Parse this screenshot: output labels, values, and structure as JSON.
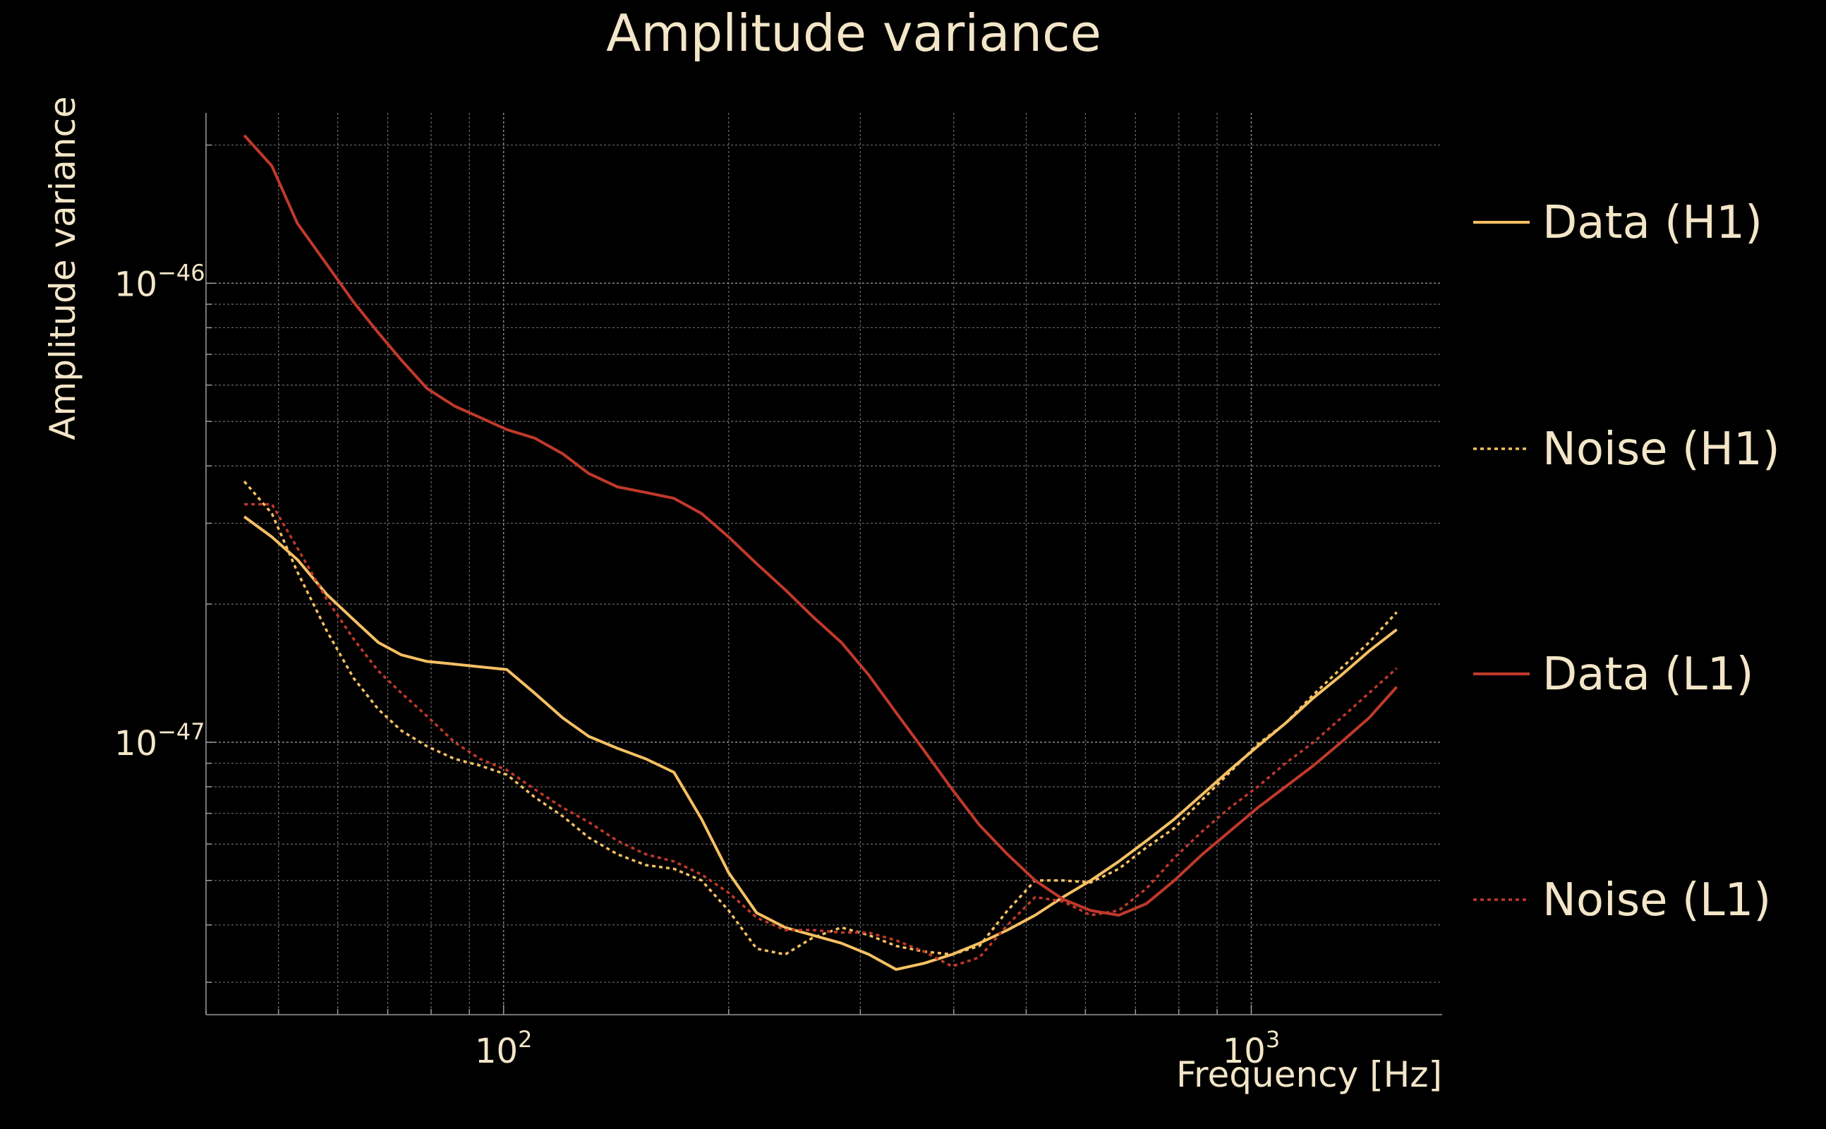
{
  "colors": {
    "background": "#000000",
    "text": "#f3e6c8",
    "h1": "#f5c063",
    "l1": "#c0392b"
  },
  "chart_data": {
    "type": "line",
    "title": "Amplitude variance",
    "xlabel": "Frequency [Hz]",
    "ylabel": "Amplitude variance",
    "x_scale": "log",
    "y_scale": "log",
    "xlim": [
      40,
      1800
    ],
    "ylim": [
      2.55e-48,
      2.35e-46
    ],
    "x_ticks": [
      {
        "value": 100,
        "label": "10",
        "exp": "2"
      },
      {
        "value": 1000,
        "label": "10",
        "exp": "3"
      }
    ],
    "y_ticks": [
      {
        "value": 1e-46,
        "label": "10",
        "exp": "−46"
      },
      {
        "value": 1e-47,
        "label": "10",
        "exp": "−47"
      }
    ],
    "grid": true,
    "legend_position": "right",
    "series": [
      {
        "name": "Data (H1)",
        "color": "#f5c063",
        "style": "solid",
        "x": [
          45,
          49,
          53,
          58,
          63,
          68,
          73,
          79,
          86,
          93,
          101,
          110,
          120,
          130,
          142,
          155,
          169,
          184,
          200,
          218,
          238,
          259,
          283,
          308,
          335,
          365,
          398,
          433,
          472,
          514,
          560,
          610,
          665,
          724,
          789,
          860,
          936,
          1020,
          1111,
          1211,
          1319,
          1437,
          1565
        ],
        "y": [
          3.1e-47,
          2.8e-47,
          2.5e-47,
          2.1e-47,
          1.85e-47,
          1.65e-47,
          1.55e-47,
          1.5e-47,
          1.48e-47,
          1.46e-47,
          1.44e-47,
          1.28e-47,
          1.13e-47,
          1.03e-47,
          9.7e-48,
          9.2e-48,
          8.6e-48,
          6.8e-48,
          5.2e-48,
          4.25e-48,
          3.95e-48,
          3.8e-48,
          3.65e-48,
          3.45e-48,
          3.2e-48,
          3.3e-48,
          3.45e-48,
          3.65e-48,
          3.9e-48,
          4.2e-48,
          4.6e-48,
          5e-48,
          5.5e-48,
          6.1e-48,
          6.8e-48,
          7.7e-48,
          8.7e-48,
          9.8e-48,
          1.1e-47,
          1.25e-47,
          1.4e-47,
          1.58e-47,
          1.76e-47
        ]
      },
      {
        "name": "Noise (H1)",
        "color": "#f5c063",
        "style": "dotted",
        "x": [
          45,
          49,
          53,
          58,
          63,
          68,
          73,
          79,
          86,
          93,
          101,
          110,
          120,
          130,
          142,
          155,
          169,
          184,
          200,
          218,
          238,
          259,
          283,
          308,
          335,
          365,
          398,
          433,
          472,
          514,
          560,
          610,
          665,
          724,
          789,
          860,
          936,
          1020,
          1111,
          1211,
          1319,
          1437,
          1565
        ],
        "y": [
          3.7e-47,
          3.15e-47,
          2.35e-47,
          1.75e-47,
          1.38e-47,
          1.18e-47,
          1.06e-47,
          9.8e-48,
          9.2e-48,
          8.9e-48,
          8.5e-48,
          7.6e-48,
          6.9e-48,
          6.2e-48,
          5.7e-48,
          5.4e-48,
          5.3e-48,
          5e-48,
          4.3e-48,
          3.55e-48,
          3.45e-48,
          3.75e-48,
          3.95e-48,
          3.8e-48,
          3.6e-48,
          3.5e-48,
          3.45e-48,
          3.6e-48,
          4.3e-48,
          5e-48,
          5e-48,
          4.95e-48,
          5.3e-48,
          5.9e-48,
          6.5e-48,
          7.5e-48,
          8.6e-48,
          9.9e-48,
          1.1e-47,
          1.27e-47,
          1.45e-47,
          1.65e-47,
          1.92e-47
        ]
      },
      {
        "name": "Data (L1)",
        "color": "#c0392b",
        "style": "solid",
        "x": [
          45,
          49,
          53,
          58,
          63,
          68,
          73,
          79,
          86,
          93,
          101,
          110,
          120,
          130,
          142,
          155,
          169,
          184,
          200,
          218,
          238,
          259,
          283,
          308,
          335,
          365,
          398,
          433,
          472,
          514,
          560,
          610,
          665,
          724,
          789,
          860,
          936,
          1020,
          1111,
          1211,
          1319,
          1437,
          1565
        ],
        "y": [
          2.1e-46,
          1.8e-46,
          1.35e-46,
          1.1e-46,
          9.1e-47,
          7.8e-47,
          6.8e-47,
          5.9e-47,
          5.4e-47,
          5.1e-47,
          4.8e-47,
          4.6e-47,
          4.25e-47,
          3.85e-47,
          3.6e-47,
          3.5e-47,
          3.4e-47,
          3.15e-47,
          2.8e-47,
          2.45e-47,
          2.15e-47,
          1.88e-47,
          1.65e-47,
          1.4e-47,
          1.16e-47,
          9.6e-48,
          7.9e-48,
          6.6e-48,
          5.7e-48,
          5e-48,
          4.55e-48,
          4.3e-48,
          4.2e-48,
          4.45e-48,
          5e-48,
          5.7e-48,
          6.4e-48,
          7.2e-48,
          8e-48,
          8.9e-48,
          1e-47,
          1.13e-47,
          1.32e-47
        ]
      },
      {
        "name": "Noise (L1)",
        "color": "#c0392b",
        "style": "dotted",
        "x": [
          45,
          49,
          53,
          58,
          63,
          68,
          73,
          79,
          86,
          93,
          101,
          110,
          120,
          130,
          142,
          155,
          169,
          184,
          200,
          218,
          238,
          259,
          283,
          308,
          335,
          365,
          398,
          433,
          472,
          514,
          560,
          610,
          665,
          724,
          789,
          860,
          936,
          1020,
          1111,
          1211,
          1319,
          1437,
          1565
        ],
        "y": [
          3.3e-47,
          3.3e-47,
          2.65e-47,
          2.05e-47,
          1.68e-47,
          1.43e-47,
          1.28e-47,
          1.14e-47,
          1e-47,
          9.2e-48,
          8.7e-48,
          7.9e-48,
          7.2e-48,
          6.7e-48,
          6.1e-48,
          5.7e-48,
          5.5e-48,
          5.15e-48,
          4.7e-48,
          4.15e-48,
          3.9e-48,
          3.9e-48,
          3.85e-48,
          3.85e-48,
          3.7e-48,
          3.5e-48,
          3.25e-48,
          3.4e-48,
          4e-48,
          4.6e-48,
          4.5e-48,
          4.2e-48,
          4.3e-48,
          4.8e-48,
          5.6e-48,
          6.4e-48,
          7.2e-48,
          8e-48,
          9e-48,
          1e-47,
          1.13e-47,
          1.28e-47,
          1.45e-47
        ]
      }
    ]
  }
}
